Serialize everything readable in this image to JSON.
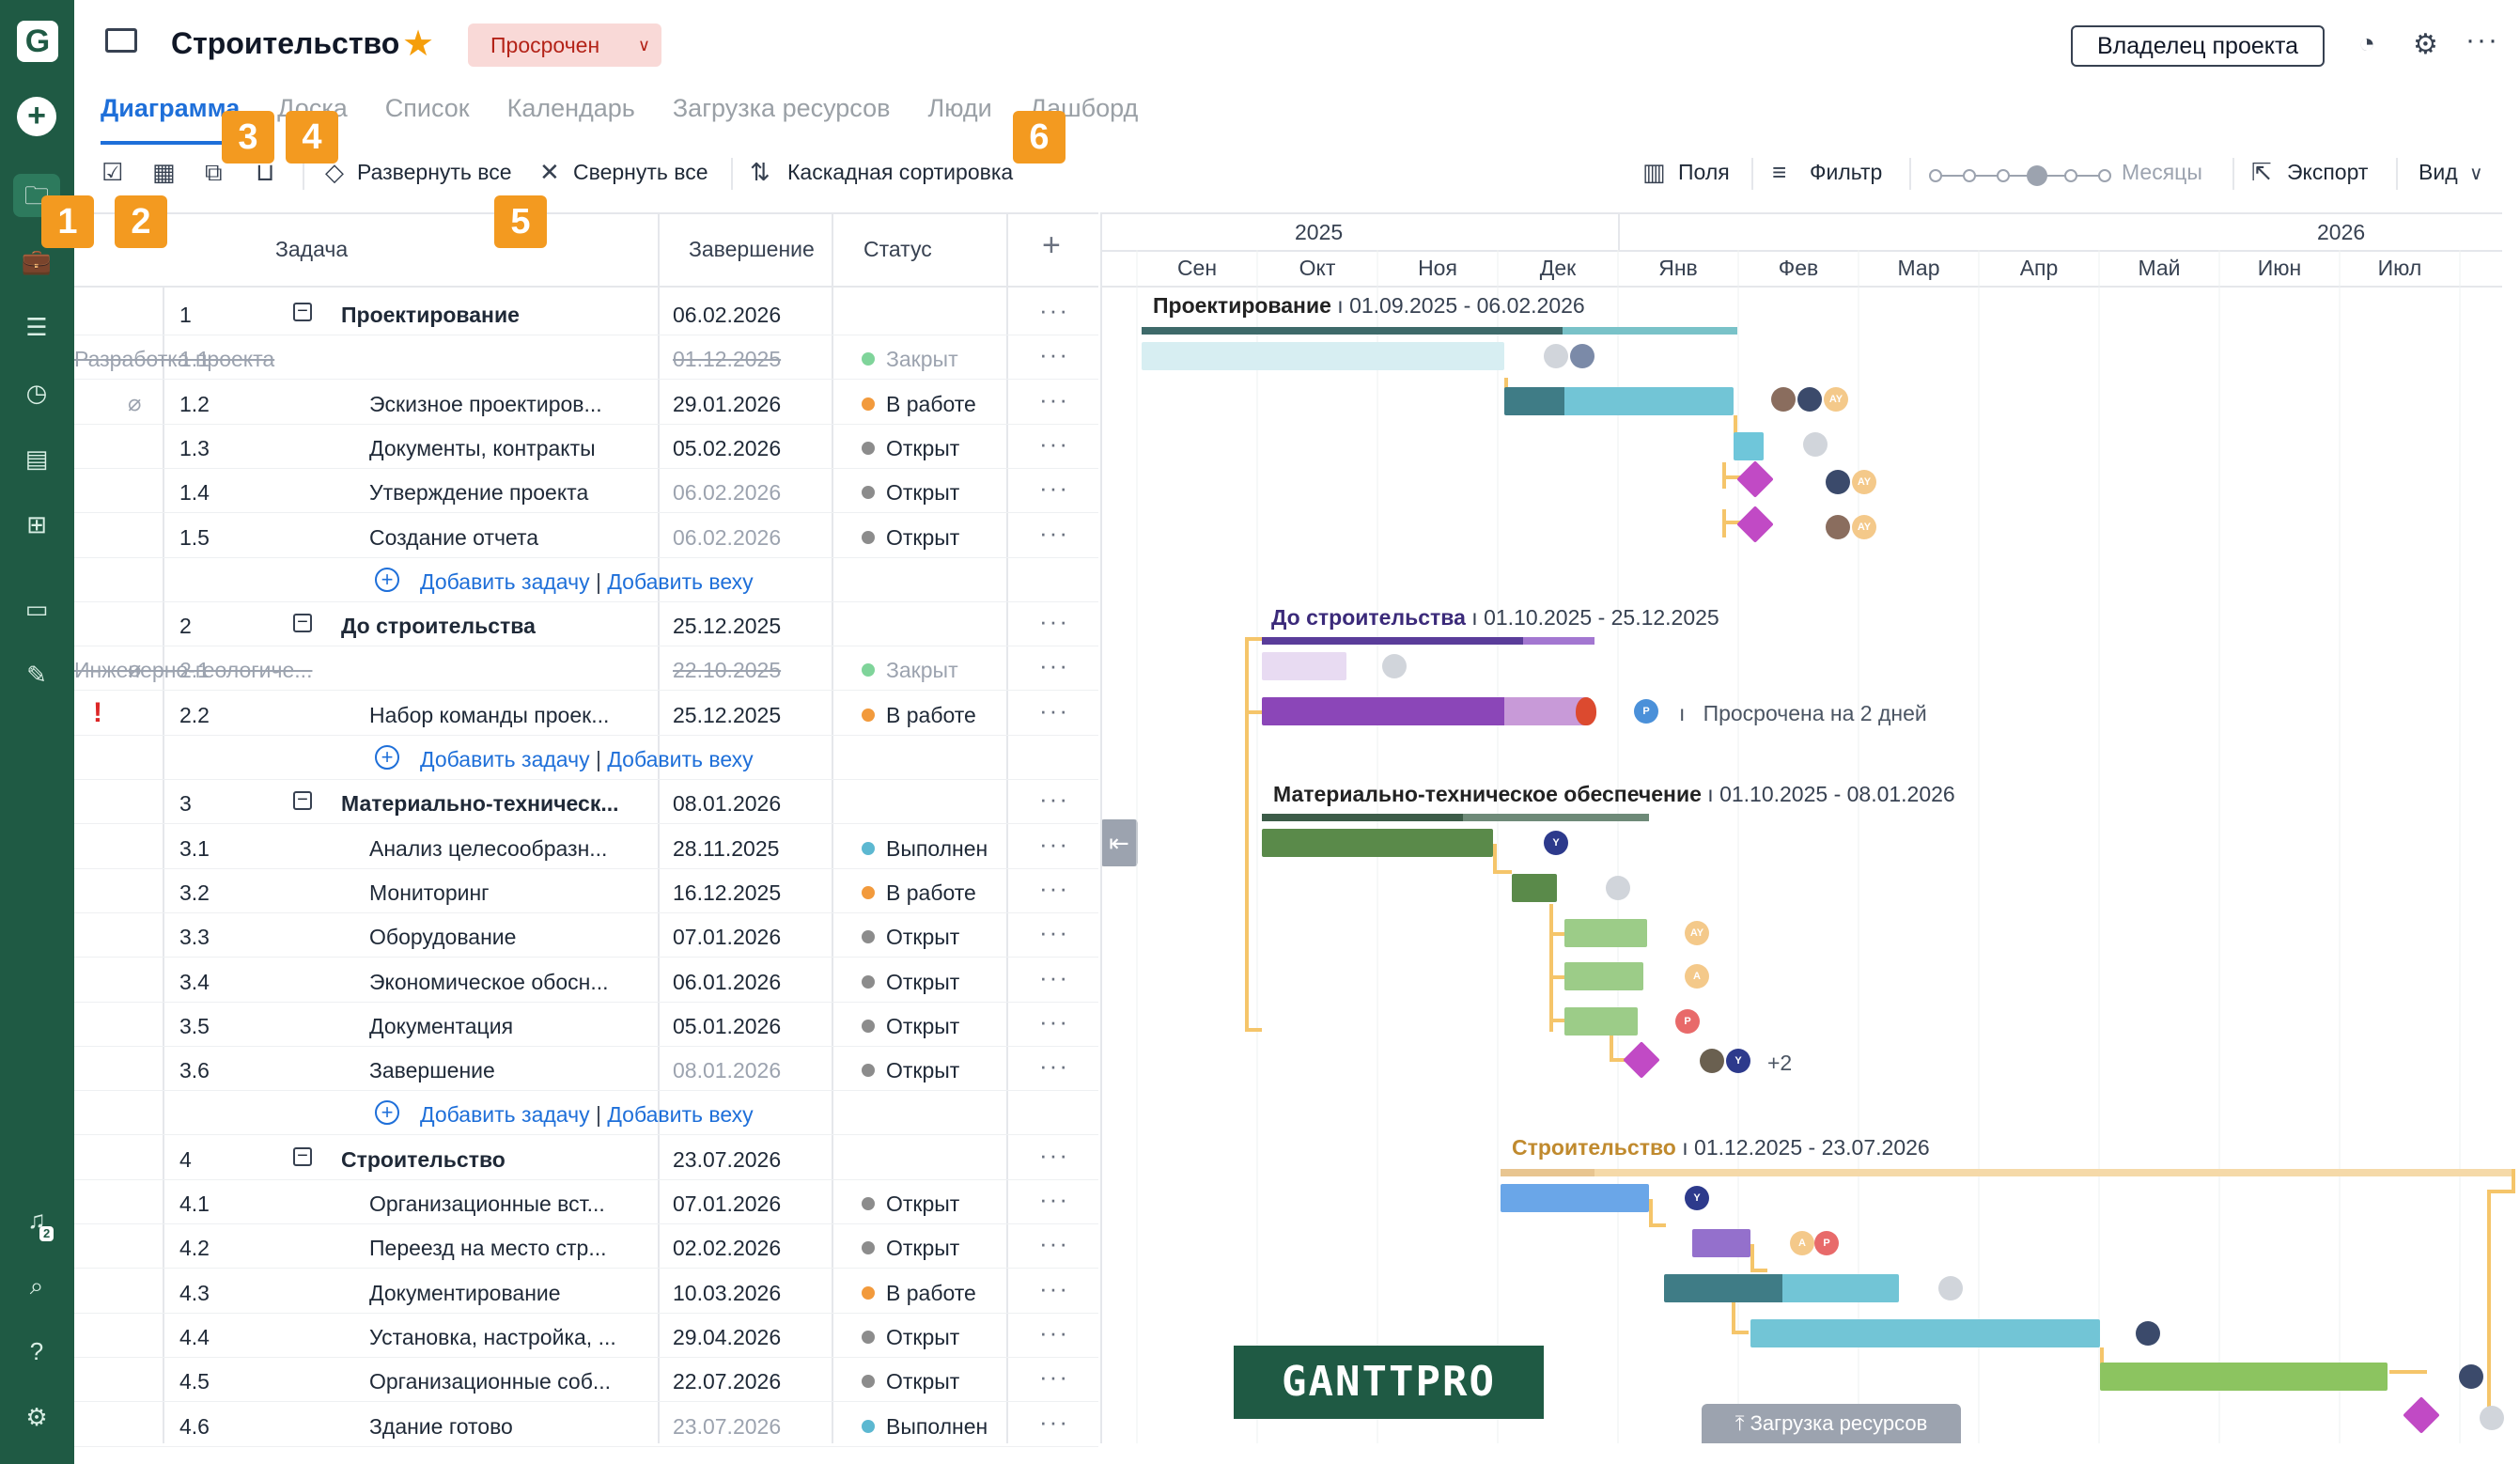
{
  "sidebar": {
    "logo": "G",
    "icons": [
      "plus-icon",
      "folder-icon",
      "briefcase-icon",
      "list-icon",
      "clock-icon",
      "report-icon",
      "apps-icon",
      "chat-icon",
      "paperclip-icon",
      "bell-icon",
      "search-icon",
      "help-icon",
      "gear-icon"
    ],
    "notification_count": "2"
  },
  "header": {
    "project_title": "Строительство",
    "status": "Просрочен",
    "owner_button": "Владелец проекта"
  },
  "tabs": [
    "Диаграмма",
    "Доска",
    "Список",
    "Календарь",
    "Загрузка ресурсов",
    "Люди",
    "Дашборд"
  ],
  "toolbar": {
    "expand_all": "Развернуть все",
    "collapse_all": "Свернуть все",
    "cascade_sort": "Каскадная сортировка",
    "fields": "Поля",
    "filter": "Фильтр",
    "zoom": "Месяцы",
    "export": "Экспорт",
    "view": "Вид"
  },
  "markers": [
    "1",
    "2",
    "3",
    "4",
    "5",
    "6"
  ],
  "grid": {
    "col_task": "Задача",
    "col_end": "Завершение",
    "col_status": "Статус",
    "add_col": "+",
    "add_task": "Добавить задачу",
    "add_milestone": "Добавить веху",
    "separator": "|"
  },
  "rows": [
    {
      "type": "group",
      "num": "1",
      "name": "Проектирование",
      "date": "06.02.2026"
    },
    {
      "type": "closed",
      "num": "1.1",
      "name": "Разработка проекта",
      "date": "01.12.2025",
      "status": "Закрыт",
      "dot": "#7fd49a"
    },
    {
      "type": "sub",
      "num": "1.2",
      "name": "Эскизное проектиров...",
      "date": "29.01.2026",
      "status": "В работе",
      "dot": "#f29a3c",
      "clip": true
    },
    {
      "type": "sub",
      "num": "1.3",
      "name": "Документы, контракты",
      "date": "05.02.2026",
      "status": "Открыт",
      "dot": "#8c8c8c"
    },
    {
      "type": "sub",
      "num": "1.4",
      "name": "Утверждение проекта",
      "date": "06.02.2026",
      "status": "Открыт",
      "dot": "#8c8c8c",
      "muted": true
    },
    {
      "type": "sub",
      "num": "1.5",
      "name": "Создание отчета",
      "date": "06.02.2026",
      "status": "Открыт",
      "dot": "#8c8c8c",
      "muted": true
    },
    {
      "type": "add"
    },
    {
      "type": "group",
      "num": "2",
      "name": "До строительства",
      "date": "25.12.2025"
    },
    {
      "type": "closed",
      "num": "2.1",
      "name": "Инженерно-геологиче...",
      "date": "22.10.2025",
      "status": "Закрыт",
      "dot": "#7fd49a",
      "clip": true
    },
    {
      "type": "sub",
      "num": "2.2",
      "name": "Набор команды проек...",
      "date": "25.12.2025",
      "status": "В работе",
      "dot": "#f29a3c",
      "alert": true
    },
    {
      "type": "add"
    },
    {
      "type": "group",
      "num": "3",
      "name": "Материально-техническ...",
      "date": "08.01.2026"
    },
    {
      "type": "sub",
      "num": "3.1",
      "name": "Анализ целесообразн...",
      "date": "28.11.2025",
      "status": "Выполнен",
      "dot": "#5cb8d1"
    },
    {
      "type": "sub",
      "num": "3.2",
      "name": "Мониторинг",
      "date": "16.12.2025",
      "status": "В работе",
      "dot": "#f29a3c"
    },
    {
      "type": "sub",
      "num": "3.3",
      "name": "Оборудование",
      "date": "07.01.2026",
      "status": "Открыт",
      "dot": "#8c8c8c"
    },
    {
      "type": "sub",
      "num": "3.4",
      "name": "Экономическое обосн...",
      "date": "06.01.2026",
      "status": "Открыт",
      "dot": "#8c8c8c"
    },
    {
      "type": "sub",
      "num": "3.5",
      "name": "Документация",
      "date": "05.01.2026",
      "status": "Открыт",
      "dot": "#8c8c8c"
    },
    {
      "type": "sub",
      "num": "3.6",
      "name": "Завершение",
      "date": "08.01.2026",
      "status": "Открыт",
      "dot": "#8c8c8c",
      "muted": true
    },
    {
      "type": "add"
    },
    {
      "type": "group",
      "num": "4",
      "name": "Строительство",
      "date": "23.07.2026"
    },
    {
      "type": "sub",
      "num": "4.1",
      "name": "Организационные вст...",
      "date": "07.01.2026",
      "status": "Открыт",
      "dot": "#8c8c8c"
    },
    {
      "type": "sub",
      "num": "4.2",
      "name": "Переезд на место стр...",
      "date": "02.02.2026",
      "status": "Открыт",
      "dot": "#8c8c8c"
    },
    {
      "type": "sub",
      "num": "4.3",
      "name": "Документирование",
      "date": "10.03.2026",
      "status": "В работе",
      "dot": "#f29a3c"
    },
    {
      "type": "sub",
      "num": "4.4",
      "name": "Установка, настройка, ...",
      "date": "29.04.2026",
      "status": "Открыт",
      "dot": "#8c8c8c"
    },
    {
      "type": "sub",
      "num": "4.5",
      "name": "Организационные соб...",
      "date": "22.07.2026",
      "status": "Открыт",
      "dot": "#8c8c8c"
    },
    {
      "type": "sub",
      "num": "4.6",
      "name": "Здание готово",
      "date": "23.07.2026",
      "status": "Выполнен",
      "dot": "#5cb8d1",
      "muted": true
    }
  ],
  "timeline": {
    "years": [
      "2025",
      "2026"
    ],
    "months": [
      "Сен",
      "Окт",
      "Ноя",
      "Дек",
      "Янв",
      "Фев",
      "Мар",
      "Апр",
      "Май",
      "Июн",
      "Июл"
    ],
    "groups": [
      {
        "name": "Проектирование",
        "range": "01.09.2025 - 06.02.2026",
        "color": "#222222"
      },
      {
        "name": "До строительства",
        "range": "01.10.2025 - 25.12.2025",
        "color": "#3b2a7a"
      },
      {
        "name": "Материально-техническое обеспечение",
        "range": "01.10.2025 - 08.01.2026",
        "color": "#222222"
      },
      {
        "name": "Строительство",
        "range": "01.12.2025 - 23.07.2026",
        "color": "#c08a2e"
      }
    ],
    "range_sep": "ı",
    "overdue_note": "Просрочена на 2 дней",
    "avatar_labels": [
      "AY",
      "P",
      "Y",
      "A",
      "+2"
    ]
  },
  "brand": "GANTTPRO",
  "resource_load": "Загрузка ресурсов"
}
